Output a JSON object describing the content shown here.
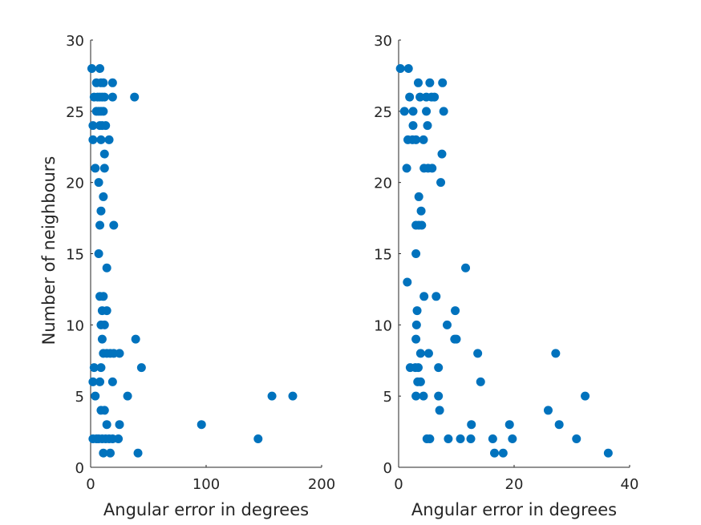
{
  "chart_data": [
    {
      "type": "scatter",
      "xlabel": "Angular error in degrees",
      "ylabel": "Number of neighbours",
      "xlim": [
        0,
        200
      ],
      "ylim": [
        0,
        30
      ],
      "xticks": [
        0,
        100,
        200
      ],
      "yticks": [
        0,
        5,
        10,
        15,
        20,
        25,
        30
      ],
      "grid": false,
      "marker_color": "#0072BD",
      "points": [
        [
          1,
          28
        ],
        [
          8,
          28
        ],
        [
          5,
          27
        ],
        [
          9,
          27
        ],
        [
          11,
          27
        ],
        [
          19,
          27
        ],
        [
          38,
          26
        ],
        [
          3,
          26
        ],
        [
          6,
          26
        ],
        [
          8,
          26
        ],
        [
          10,
          26
        ],
        [
          12,
          26
        ],
        [
          19,
          26
        ],
        [
          5,
          25
        ],
        [
          7,
          25
        ],
        [
          9,
          25
        ],
        [
          11,
          25
        ],
        [
          2,
          24
        ],
        [
          8,
          24
        ],
        [
          10,
          24
        ],
        [
          13,
          24
        ],
        [
          2,
          23
        ],
        [
          9,
          23
        ],
        [
          16,
          23
        ],
        [
          12,
          22
        ],
        [
          4,
          21
        ],
        [
          12,
          21
        ],
        [
          7,
          20
        ],
        [
          11,
          19
        ],
        [
          9,
          18
        ],
        [
          8,
          17
        ],
        [
          20,
          17
        ],
        [
          7,
          15
        ],
        [
          14,
          14
        ],
        [
          8,
          12
        ],
        [
          11,
          12
        ],
        [
          10,
          11
        ],
        [
          14,
          11
        ],
        [
          9,
          10
        ],
        [
          12,
          10
        ],
        [
          10,
          9
        ],
        [
          39,
          9
        ],
        [
          11,
          8
        ],
        [
          14,
          8
        ],
        [
          17,
          8
        ],
        [
          20,
          8
        ],
        [
          25,
          8
        ],
        [
          3,
          7
        ],
        [
          9,
          7
        ],
        [
          44,
          7
        ],
        [
          2,
          6
        ],
        [
          8,
          6
        ],
        [
          19,
          6
        ],
        [
          4,
          5
        ],
        [
          32,
          5
        ],
        [
          157,
          5
        ],
        [
          175,
          5
        ],
        [
          9,
          4
        ],
        [
          12,
          4
        ],
        [
          14,
          3
        ],
        [
          25,
          3
        ],
        [
          96,
          3
        ],
        [
          2,
          2
        ],
        [
          5,
          2
        ],
        [
          7,
          2
        ],
        [
          10,
          2
        ],
        [
          13,
          2
        ],
        [
          16,
          2
        ],
        [
          19,
          2
        ],
        [
          24,
          2
        ],
        [
          145,
          2
        ],
        [
          11,
          1
        ],
        [
          17,
          1
        ],
        [
          41,
          1
        ]
      ]
    },
    {
      "type": "scatter",
      "xlabel": "Angular error in degrees",
      "ylabel": "",
      "xlim": [
        0,
        40
      ],
      "ylim": [
        0,
        30
      ],
      "xticks": [
        0,
        20,
        40
      ],
      "yticks": [
        0,
        5,
        10,
        15,
        20,
        25,
        30
      ],
      "grid": false,
      "marker_color": "#0072BD",
      "points": [
        [
          0.3,
          28
        ],
        [
          1.7,
          28
        ],
        [
          3.4,
          27
        ],
        [
          5.4,
          27
        ],
        [
          7.6,
          27
        ],
        [
          1.9,
          26
        ],
        [
          3.7,
          26
        ],
        [
          4.8,
          26
        ],
        [
          5.7,
          26
        ],
        [
          6.2,
          26
        ],
        [
          1.0,
          25
        ],
        [
          2.5,
          25
        ],
        [
          4.8,
          25
        ],
        [
          7.8,
          25
        ],
        [
          2.5,
          24
        ],
        [
          5.0,
          24
        ],
        [
          1.6,
          23
        ],
        [
          2.4,
          23
        ],
        [
          3.0,
          23
        ],
        [
          4.3,
          23
        ],
        [
          7.5,
          22
        ],
        [
          1.4,
          21
        ],
        [
          4.4,
          21
        ],
        [
          5.1,
          21
        ],
        [
          5.8,
          21
        ],
        [
          7.3,
          20
        ],
        [
          3.5,
          19
        ],
        [
          3.9,
          18
        ],
        [
          3.0,
          17
        ],
        [
          3.5,
          17
        ],
        [
          4.0,
          17
        ],
        [
          3.0,
          15
        ],
        [
          11.6,
          14
        ],
        [
          1.5,
          13
        ],
        [
          4.4,
          12
        ],
        [
          6.5,
          12
        ],
        [
          3.2,
          11
        ],
        [
          9.8,
          11
        ],
        [
          3.1,
          10
        ],
        [
          8.4,
          10
        ],
        [
          3.0,
          9
        ],
        [
          9.7,
          9
        ],
        [
          10.0,
          9
        ],
        [
          3.8,
          8
        ],
        [
          5.2,
          8
        ],
        [
          13.7,
          8
        ],
        [
          27.2,
          8
        ],
        [
          2.0,
          7
        ],
        [
          2.9,
          7
        ],
        [
          3.4,
          7
        ],
        [
          6.9,
          7
        ],
        [
          3.3,
          6
        ],
        [
          3.8,
          6
        ],
        [
          14.2,
          6
        ],
        [
          3.0,
          5
        ],
        [
          4.3,
          5
        ],
        [
          6.9,
          5
        ],
        [
          32.3,
          5
        ],
        [
          7.1,
          4
        ],
        [
          25.9,
          4
        ],
        [
          12.6,
          3
        ],
        [
          19.2,
          3
        ],
        [
          27.8,
          3
        ],
        [
          4.9,
          2
        ],
        [
          5.4,
          2
        ],
        [
          8.6,
          2
        ],
        [
          10.7,
          2
        ],
        [
          12.5,
          2
        ],
        [
          16.3,
          2
        ],
        [
          19.7,
          2
        ],
        [
          30.8,
          2
        ],
        [
          16.6,
          1
        ],
        [
          18.1,
          1
        ],
        [
          36.3,
          1
        ]
      ]
    }
  ]
}
